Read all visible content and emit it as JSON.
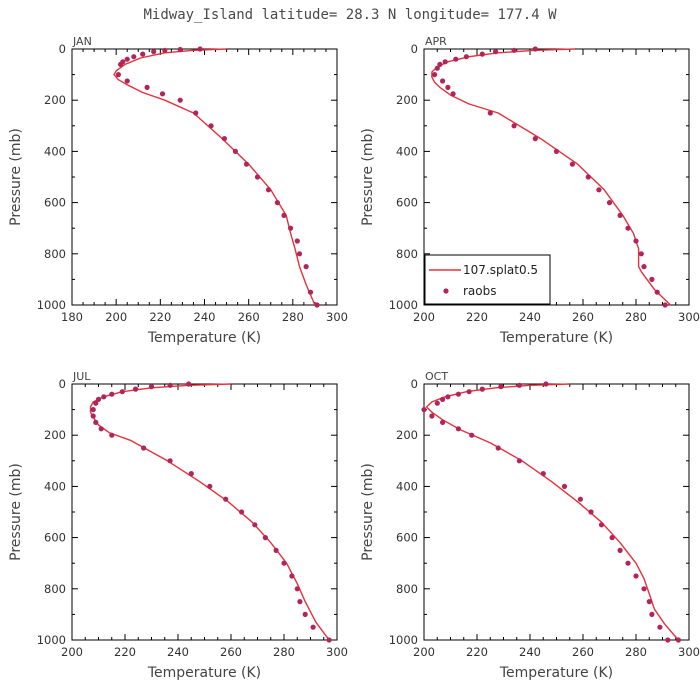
{
  "figure_title": "Midway_Island  latitude= 28.3 N longitude= 177.4 W",
  "legend": {
    "model": "107.splat0.5",
    "obs": "raobs"
  },
  "colors": {
    "model": "#e8303a",
    "obs": "#b3245a",
    "axis": "#000000",
    "text": "#444444"
  },
  "chart_data": [
    {
      "type": "line",
      "label": "JAN",
      "xlabel": "Temperature (K)",
      "ylabel": "Pressure (mb)",
      "xlim": [
        180,
        300
      ],
      "ylim": [
        1000,
        0
      ],
      "xticks": [
        180,
        200,
        220,
        240,
        260,
        280,
        300
      ],
      "yticks": [
        0,
        200,
        400,
        600,
        800,
        1000
      ],
      "series": [
        {
          "name": "107.splat0.5",
          "style": "line",
          "x": [
            250,
            235,
            222,
            211,
            204,
            200,
            199,
            201,
            205,
            212,
            222,
            235,
            248,
            260,
            270,
            277,
            279,
            281,
            283,
            286,
            290
          ],
          "y": [
            0,
            5,
            15,
            35,
            60,
            85,
            100,
            120,
            140,
            170,
            200,
            250,
            350,
            450,
            550,
            650,
            720,
            780,
            850,
            920,
            1000
          ]
        },
        {
          "name": "raobs",
          "style": "scatter",
          "x": [
            238,
            229,
            222,
            217,
            212,
            208,
            205,
            203,
            202,
            201,
            205,
            214,
            221,
            229,
            236,
            243,
            249,
            254,
            259,
            264,
            269,
            273,
            276,
            279,
            282,
            283,
            286,
            288,
            291
          ],
          "y": [
            0,
            2,
            5,
            10,
            20,
            30,
            40,
            50,
            60,
            100,
            125,
            150,
            175,
            200,
            250,
            300,
            350,
            400,
            450,
            500,
            550,
            600,
            650,
            700,
            750,
            800,
            850,
            950,
            1000
          ]
        }
      ]
    },
    {
      "type": "line",
      "label": "APR",
      "xlabel": "Temperature (K)",
      "ylabel": "Pressure (mb)",
      "xlim": [
        200,
        300
      ],
      "ylim": [
        1000,
        0
      ],
      "xticks": [
        200,
        220,
        240,
        260,
        280,
        300
      ],
      "yticks": [
        0,
        200,
        400,
        600,
        800,
        1000
      ],
      "series": [
        {
          "name": "107.splat0.5",
          "style": "line",
          "x": [
            257,
            242,
            228,
            217,
            209,
            205,
            203,
            203,
            204,
            206,
            210,
            217,
            228,
            244,
            258,
            268,
            275,
            279,
            281,
            281,
            282,
            287,
            293
          ],
          "y": [
            0,
            5,
            15,
            30,
            50,
            70,
            90,
            110,
            130,
            150,
            180,
            215,
            250,
            350,
            450,
            550,
            650,
            720,
            780,
            850,
            870,
            940,
            1000
          ]
        },
        {
          "name": "raobs",
          "style": "scatter",
          "x": [
            242,
            234,
            227,
            222,
            216,
            212,
            208,
            206,
            205,
            204,
            207,
            209,
            211,
            225,
            234,
            242,
            250,
            256,
            262,
            266,
            270,
            274,
            277,
            280,
            282,
            283,
            286,
            288,
            291
          ],
          "y": [
            0,
            5,
            10,
            20,
            30,
            40,
            50,
            60,
            75,
            100,
            125,
            150,
            175,
            250,
            300,
            350,
            400,
            450,
            500,
            550,
            600,
            650,
            700,
            750,
            800,
            850,
            900,
            950,
            1000
          ]
        }
      ]
    },
    {
      "type": "line",
      "label": "JUL",
      "xlabel": "Temperature (K)",
      "ylabel": "Pressure (mb)",
      "xlim": [
        200,
        300
      ],
      "ylim": [
        1000,
        0
      ],
      "xticks": [
        200,
        220,
        240,
        260,
        280,
        300
      ],
      "yticks": [
        0,
        200,
        400,
        600,
        800,
        1000
      ],
      "series": [
        {
          "name": "107.splat0.5",
          "style": "line",
          "x": [
            260,
            244,
            230,
            219,
            212,
            208,
            207,
            207,
            208,
            210,
            214,
            222,
            236,
            248,
            259,
            268,
            275,
            281,
            285,
            288,
            292,
            297
          ],
          "y": [
            0,
            5,
            15,
            30,
            50,
            70,
            90,
            110,
            130,
            160,
            190,
            220,
            300,
            380,
            460,
            540,
            620,
            700,
            780,
            850,
            930,
            1000
          ]
        },
        {
          "name": "raobs",
          "style": "scatter",
          "x": [
            244,
            237,
            230,
            224,
            219,
            215,
            212,
            210,
            209,
            208,
            208,
            209,
            211,
            215,
            227,
            237,
            245,
            252,
            258,
            264,
            269,
            273,
            277,
            280,
            283,
            285,
            286,
            288,
            291,
            297
          ],
          "y": [
            0,
            5,
            10,
            20,
            30,
            40,
            50,
            60,
            75,
            100,
            125,
            150,
            175,
            200,
            250,
            300,
            350,
            400,
            450,
            500,
            550,
            600,
            650,
            700,
            750,
            800,
            850,
            900,
            950,
            1000
          ]
        }
      ]
    },
    {
      "type": "line",
      "label": "OCT",
      "xlabel": "Temperature (K)",
      "ylabel": "Pressure (mb)",
      "xlim": [
        200,
        300
      ],
      "ylim": [
        1000,
        0
      ],
      "xticks": [
        200,
        220,
        240,
        260,
        280,
        300
      ],
      "yticks": [
        0,
        200,
        400,
        600,
        800,
        1000
      ],
      "series": [
        {
          "name": "107.splat0.5",
          "style": "line",
          "x": [
            255,
            240,
            227,
            216,
            208,
            203,
            201,
            203,
            207,
            214,
            225,
            237,
            248,
            258,
            267,
            274,
            280,
            283,
            285,
            287,
            291,
            296
          ],
          "y": [
            0,
            5,
            15,
            30,
            50,
            70,
            90,
            110,
            140,
            180,
            230,
            300,
            380,
            460,
            540,
            620,
            700,
            760,
            820,
            880,
            940,
            1000
          ]
        },
        {
          "name": "raobs",
          "style": "scatter",
          "x": [
            246,
            236,
            229,
            222,
            217,
            213,
            209,
            207,
            205,
            200,
            203,
            207,
            213,
            218,
            228,
            236,
            245,
            253,
            259,
            263,
            267,
            271,
            274,
            277,
            280,
            283,
            285,
            286,
            289,
            292,
            296
          ],
          "y": [
            0,
            5,
            10,
            20,
            30,
            40,
            50,
            60,
            75,
            100,
            125,
            150,
            175,
            200,
            250,
            300,
            350,
            400,
            450,
            500,
            550,
            600,
            650,
            700,
            750,
            800,
            850,
            900,
            950,
            1000,
            1020
          ]
        }
      ]
    }
  ]
}
